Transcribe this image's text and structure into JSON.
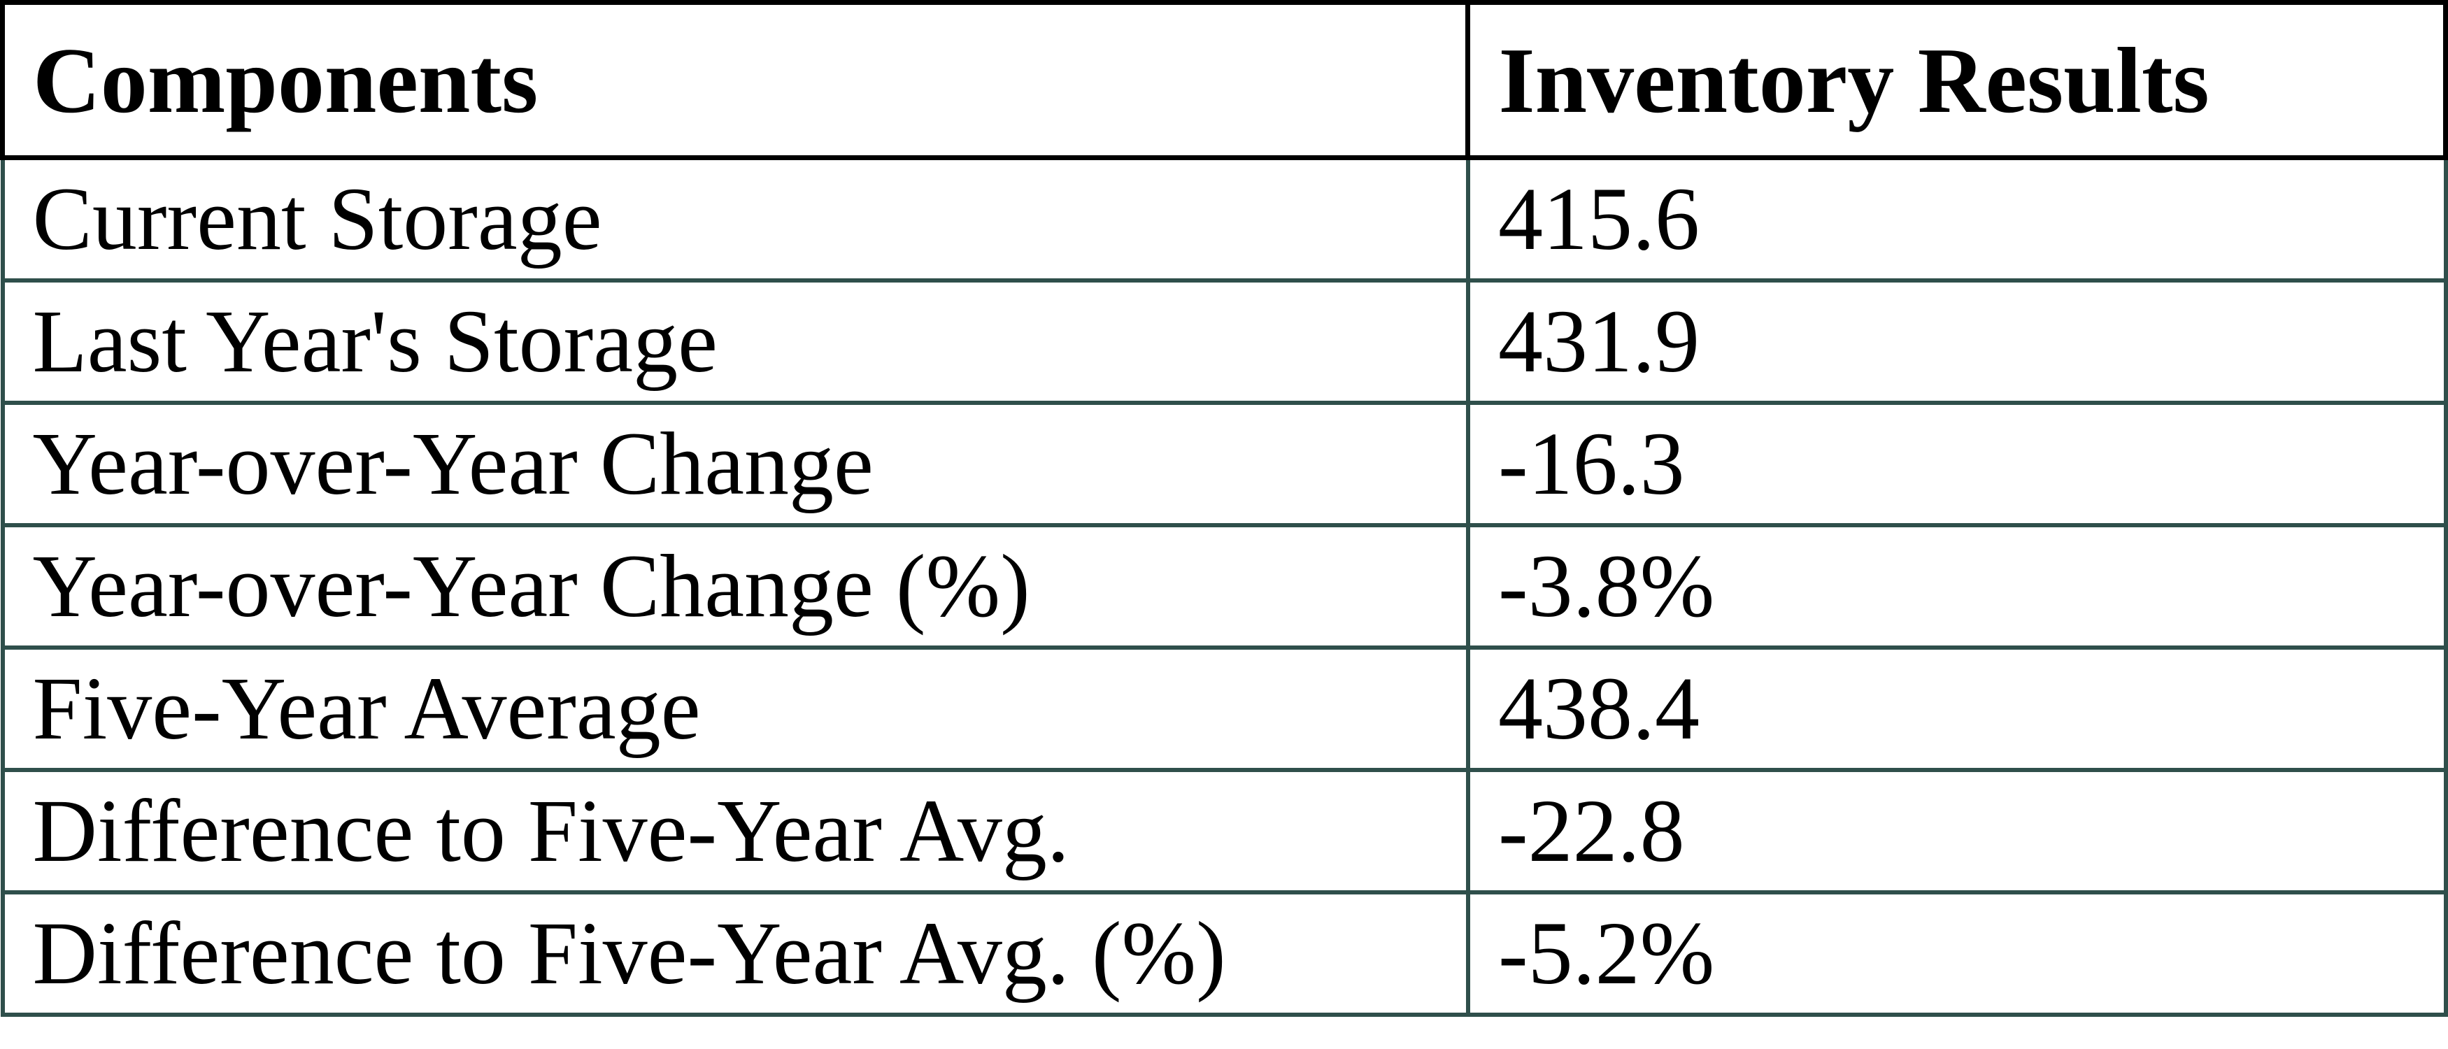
{
  "chart_data": {
    "type": "table",
    "columns": [
      "Components",
      "Inventory Results"
    ],
    "rows": [
      [
        "Current Storage",
        "415.6"
      ],
      [
        "Last Year's Storage",
        "431.9"
      ],
      [
        "Year-over-Year Change",
        "-16.3"
      ],
      [
        "Year-over-Year Change (%)",
        "-3.8%"
      ],
      [
        "Five-Year Average",
        "438.4"
      ],
      [
        "Difference to Five-Year Avg.",
        "-22.8"
      ],
      [
        "Difference to Five-Year Avg. (%)",
        "-5.2%"
      ]
    ]
  },
  "colors": {
    "header_border": "#000000",
    "body_border": "#2f4f4b",
    "text": "#000000",
    "background": "#ffffff"
  }
}
